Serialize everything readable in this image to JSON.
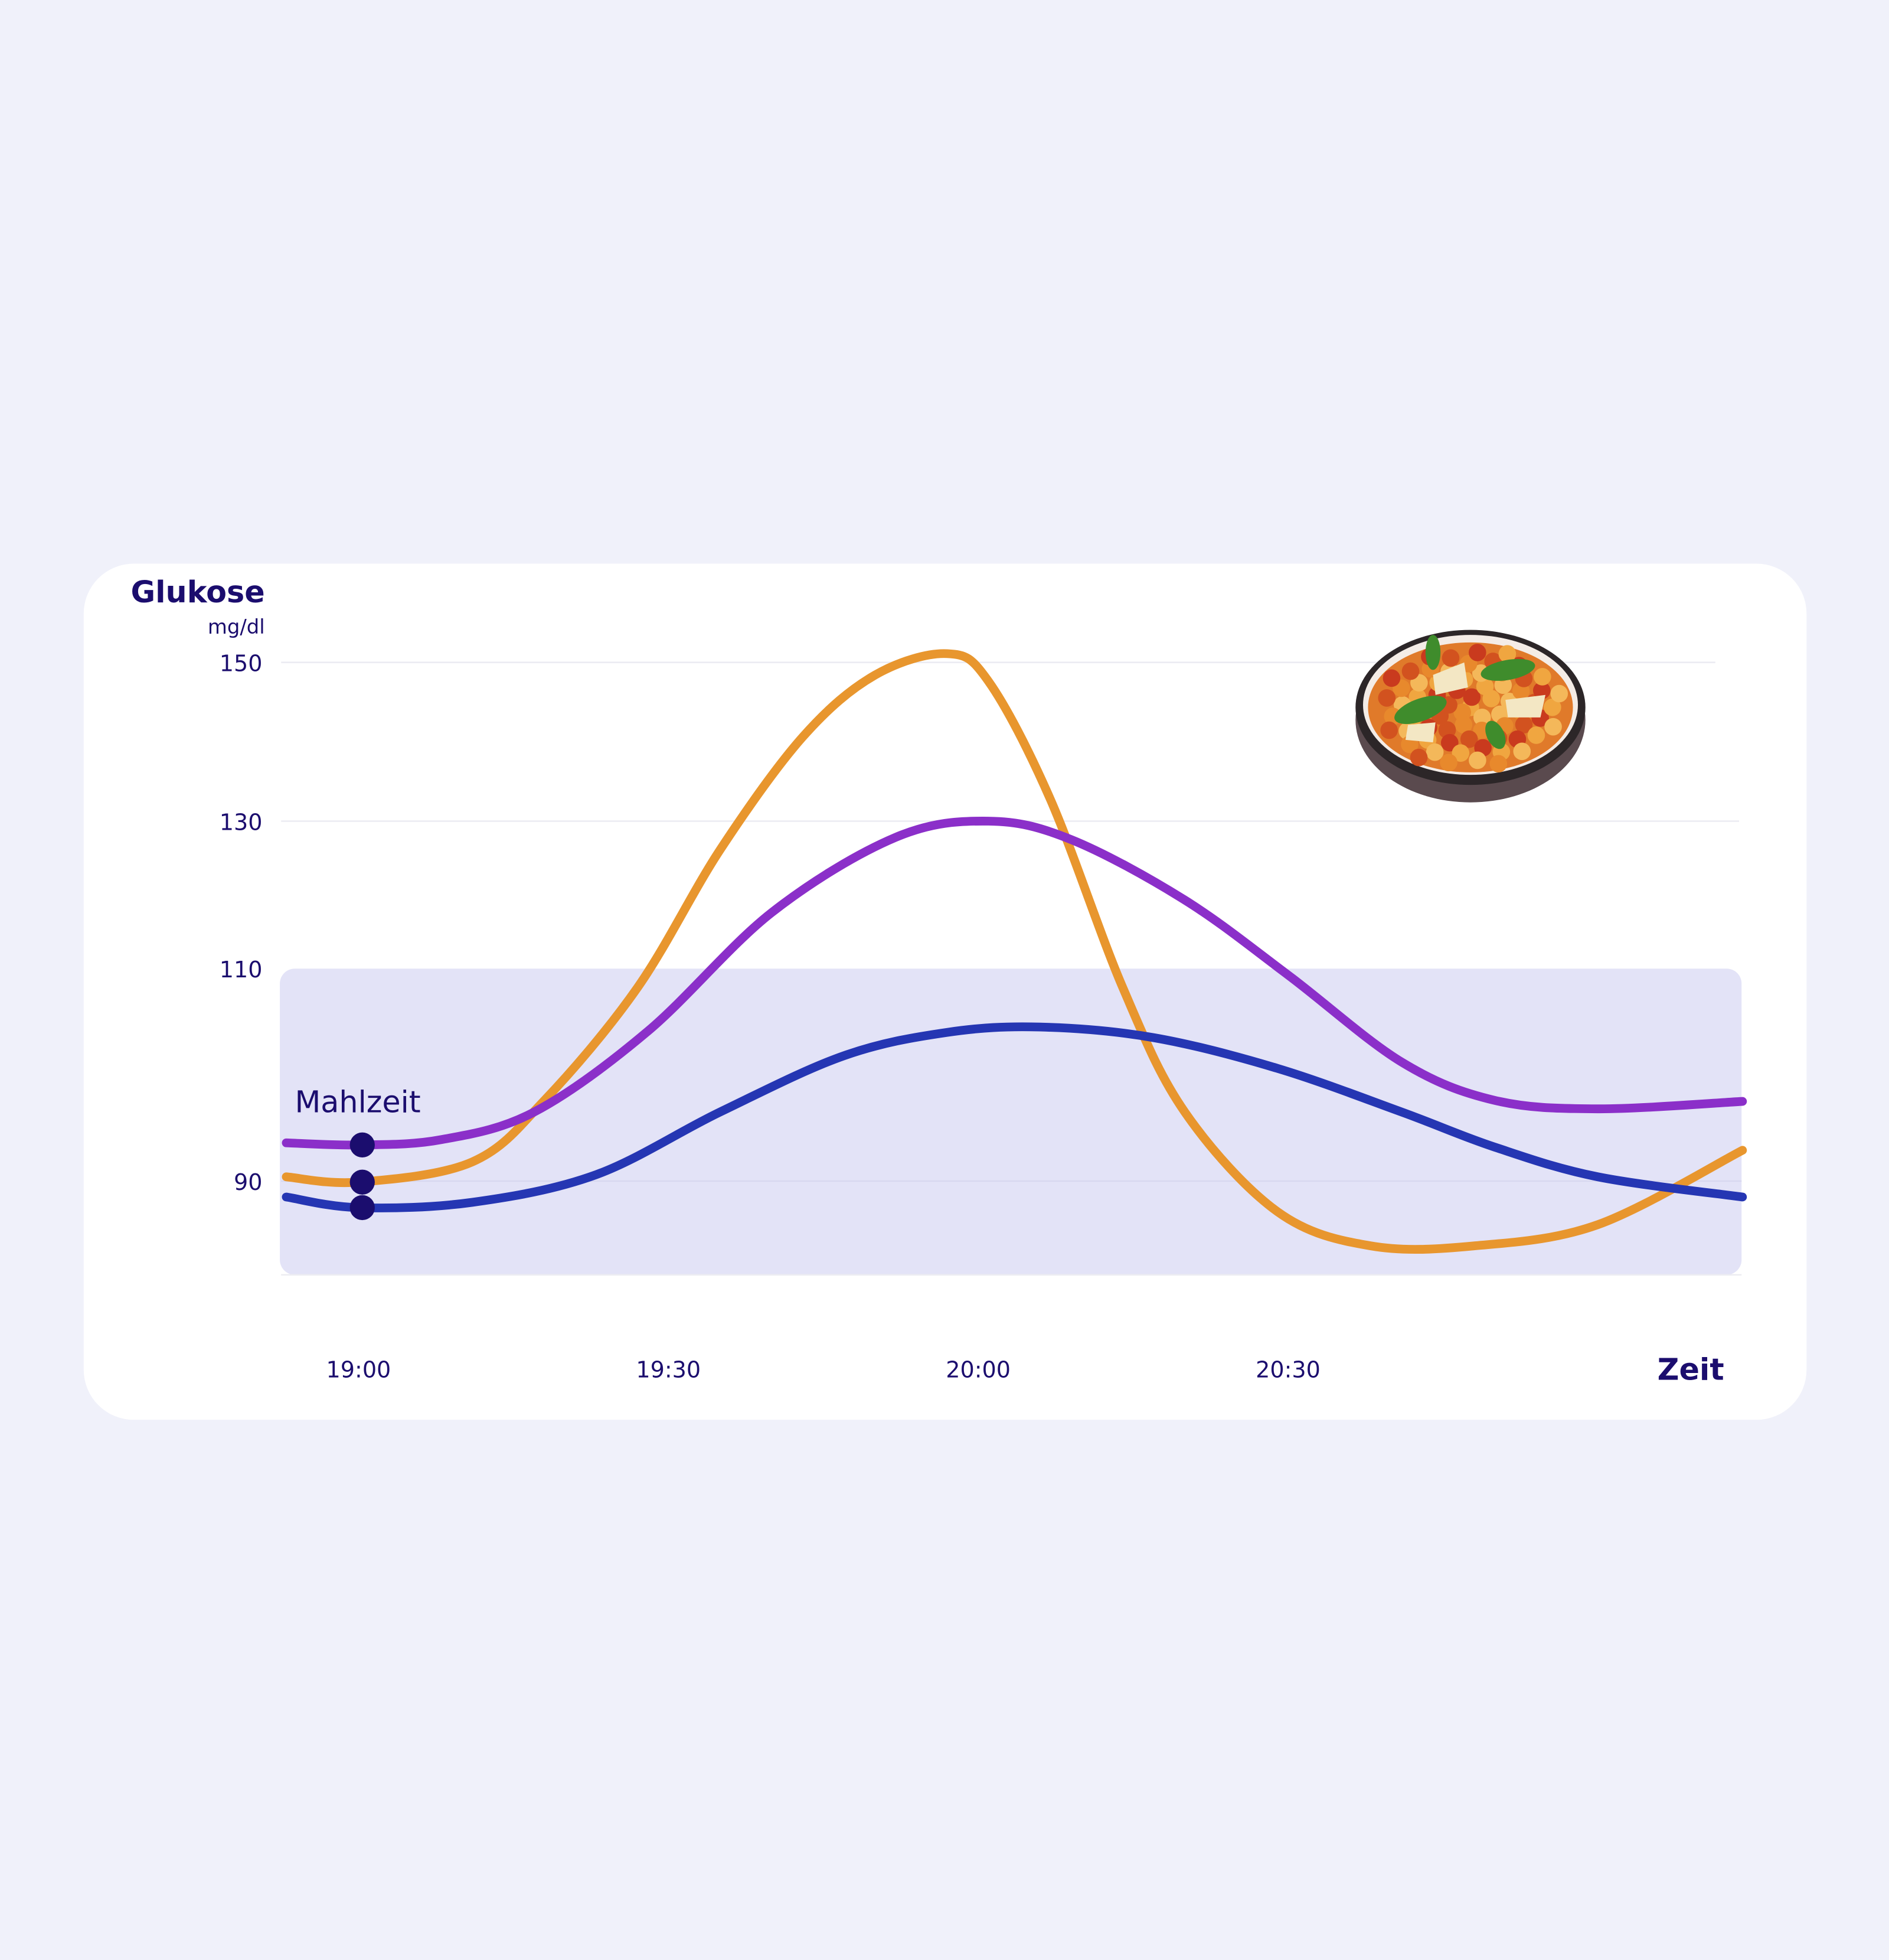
{
  "chart_data": {
    "type": "line",
    "ylabel": "Glukose",
    "yunit": "mg/dl",
    "xlabel": "Zeit",
    "yticks": [
      150,
      130,
      110,
      90
    ],
    "xticks": [
      "19:00",
      "19:30",
      "20:00",
      "20:30"
    ],
    "target_range": {
      "min": 80,
      "max": 110,
      "color": "#e3e3f7"
    },
    "annotation": {
      "label": "Mahlzeit",
      "time": "19:00"
    },
    "grid": true,
    "series": [
      {
        "color": "#e8962e",
        "points": [
          [
            "18:53",
            90.4
          ],
          [
            "19:00",
            89.9
          ],
          [
            "19:11",
            91.8
          ],
          [
            "19:18",
            97.6
          ],
          [
            "19:27",
            108.2
          ],
          [
            "19:35",
            126.1
          ],
          [
            "19:43",
            140.6
          ],
          [
            "19:50",
            148.4
          ],
          [
            "19:57",
            151.1
          ],
          [
            "20:01",
            147.6
          ],
          [
            "20:07",
            132.7
          ],
          [
            "20:14",
            108.2
          ],
          [
            "20:20",
            96.5
          ],
          [
            "20:29",
            87.1
          ],
          [
            "20:38",
            83.9
          ],
          [
            "20:48",
            83.9
          ],
          [
            "21:00",
            85.9
          ],
          [
            "21:14",
            92.9
          ]
        ]
      },
      {
        "color": "#8b2fc9",
        "points": [
          [
            "18:53",
            93.6
          ],
          [
            "19:00",
            93.4
          ],
          [
            "19:08",
            93.9
          ],
          [
            "19:17",
            96.5
          ],
          [
            "19:28",
            104.1
          ],
          [
            "19:40",
            117.6
          ],
          [
            "19:52",
            127.8
          ],
          [
            "20:01",
            130
          ],
          [
            "20:09",
            127.5
          ],
          [
            "20:20",
            119.3
          ],
          [
            "20:30",
            109.4
          ],
          [
            "20:41",
            101.2
          ],
          [
            "20:50",
            97.6
          ],
          [
            "21:00",
            96.8
          ],
          [
            "21:14",
            97.5
          ]
        ]
      },
      {
        "color": "#2536b3",
        "points": [
          [
            "18:53",
            88.5
          ],
          [
            "19:00",
            87.5
          ],
          [
            "19:11",
            88
          ],
          [
            "19:23",
            90.6
          ],
          [
            "19:35",
            96.5
          ],
          [
            "19:47",
            101.8
          ],
          [
            "19:57",
            104
          ],
          [
            "20:06",
            104.5
          ],
          [
            "20:17",
            103.5
          ],
          [
            "20:29",
            100.6
          ],
          [
            "20:41",
            96.5
          ],
          [
            "20:50",
            93.2
          ],
          [
            "21:00",
            90.4
          ],
          [
            "21:14",
            88.5
          ]
        ]
      }
    ],
    "marker_color": "#1b0d6e",
    "image": "pasta-bowl"
  }
}
